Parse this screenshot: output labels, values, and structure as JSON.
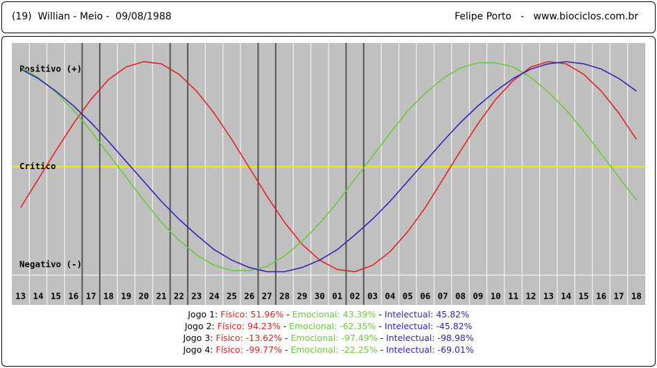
{
  "header": {
    "left": "(19)  Willian - Meio -  09/08/1988",
    "right": "Felipe Porto   -   www.biociclos.com.br"
  },
  "chart_data": {
    "type": "line",
    "categories": [
      "13",
      "14",
      "15",
      "16",
      "17",
      "18",
      "19",
      "20",
      "21",
      "22",
      "23",
      "24",
      "25",
      "26",
      "27",
      "28",
      "29",
      "30",
      "01",
      "02",
      "03",
      "04",
      "05",
      "06",
      "07",
      "08",
      "09",
      "10",
      "11",
      "12",
      "13",
      "14",
      "15",
      "16",
      "17",
      "18"
    ],
    "series": [
      {
        "name": "Físico",
        "color": "#e82020",
        "values": [
          -39,
          -12,
          15,
          41,
          64,
          83,
          95,
          100,
          98,
          88,
          72,
          51,
          26,
          -1,
          -28,
          -53,
          -74,
          -89,
          -98,
          -100,
          -94,
          -81,
          -62,
          -39,
          -12,
          15,
          41,
          64,
          82,
          95,
          100,
          98,
          88,
          72,
          51,
          26
        ]
      },
      {
        "name": "Emocional",
        "color": "#66cc33",
        "values": [
          95,
          85,
          71,
          54,
          34,
          12,
          -10,
          -32,
          -53,
          -70,
          -84,
          -94,
          -99,
          -99,
          -95,
          -85,
          -71,
          -54,
          -34,
          -12,
          10,
          32,
          53,
          70,
          84,
          94,
          99,
          99,
          95,
          85,
          71,
          54,
          34,
          12,
          -10,
          -32
        ]
      },
      {
        "name": "Intelectual",
        "color": "#3322bb",
        "values": [
          93,
          84,
          72,
          58,
          42,
          24,
          5,
          -14,
          -33,
          -50,
          -65,
          -79,
          -89,
          -96,
          -100,
          -100,
          -96,
          -89,
          -79,
          -65,
          -50,
          -33,
          -14,
          5,
          24,
          42,
          58,
          72,
          84,
          93,
          98,
          100,
          98,
          93,
          84,
          72
        ]
      }
    ],
    "ylim": [
      -100,
      100
    ],
    "yticks": [
      {
        "value": 100,
        "label": "Positivo (+)"
      },
      {
        "value": 0,
        "label": "Crítico"
      },
      {
        "value": -100,
        "label": "Negativo (-)"
      }
    ],
    "reference_line": {
      "value": 0,
      "color": "#f0f000"
    },
    "highlight_categories": [
      4,
      9,
      14,
      19
    ],
    "grid": true
  },
  "separator": "-",
  "games": [
    {
      "label": "Jogo 1:",
      "fields": [
        {
          "label": "Físico:",
          "value": 51.96,
          "value_label": "51.96%"
        },
        {
          "label": "Emocional:",
          "value": 43.39,
          "value_label": "43.39%"
        },
        {
          "label": "Intelectual:",
          "value": 45.82,
          "value_label": "45.82%"
        }
      ]
    },
    {
      "label": "Jogo 2:",
      "fields": [
        {
          "label": "Físico:",
          "value": 94.23,
          "value_label": "94.23%"
        },
        {
          "label": "Emocional:",
          "value": -62.35,
          "value_label": "-62.35%"
        },
        {
          "label": "Intelectual:",
          "value": -45.82,
          "value_label": "-45.82%"
        }
      ]
    },
    {
      "label": "Jogo 3:",
      "fields": [
        {
          "label": "Físico:",
          "value": -13.62,
          "value_label": "-13.62%"
        },
        {
          "label": "Emocional:",
          "value": -97.49,
          "value_label": "-97.49%"
        },
        {
          "label": "Intelectual:",
          "value": -98.98,
          "value_label": "-98.98%"
        }
      ]
    },
    {
      "label": "Jogo 4:",
      "fields": [
        {
          "label": "Físico:",
          "value": -99.77,
          "value_label": "-99.77%"
        },
        {
          "label": "Emocional:",
          "value": -22.25,
          "value_label": "-22.25%"
        },
        {
          "label": "Intelectual:",
          "value": -69.01,
          "value_label": "-69.01%"
        }
      ]
    }
  ]
}
